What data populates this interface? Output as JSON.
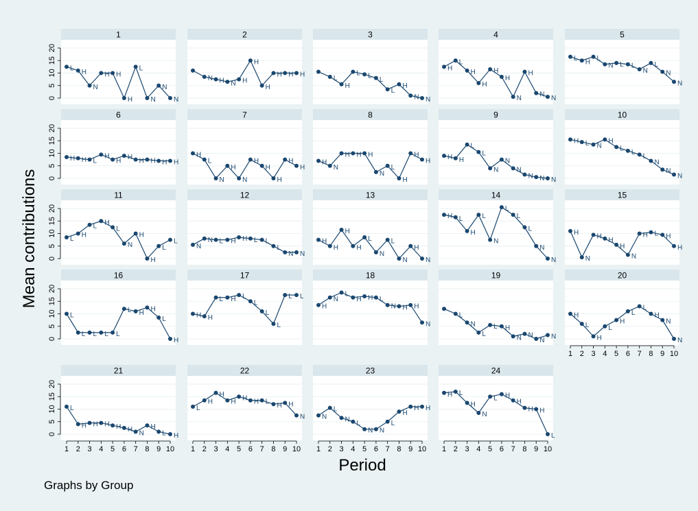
{
  "chart_data": {
    "type": "line",
    "ylabel": "Mean contributions",
    "xlabel": "Period",
    "note": "Graphs by Group",
    "x": [
      1,
      2,
      3,
      4,
      5,
      6,
      7,
      8,
      9,
      10
    ],
    "xlim": [
      1,
      10
    ],
    "ylim": [
      0,
      20
    ],
    "yticks": [
      0,
      5,
      10,
      15,
      20
    ],
    "grid": true,
    "background_color": "#eaf2f3",
    "panel_color": "#ffffff",
    "strip_color": "#d9e6ec",
    "line_color": "#1a476f",
    "groups": [
      {
        "name": "1",
        "values": [
          12.5,
          11,
          5,
          10,
          10,
          0,
          12.5,
          0,
          5,
          0
        ],
        "markers": [
          "L",
          "H",
          "N",
          "H",
          "H",
          "H",
          "L",
          "N",
          "N",
          "N"
        ]
      },
      {
        "name": "2",
        "values": [
          11,
          8.5,
          7.5,
          6.5,
          7.5,
          15,
          5,
          10,
          10,
          10
        ],
        "markers": [
          "",
          "N",
          "H",
          "N",
          "H",
          "H",
          "H",
          "H",
          "H",
          "H"
        ]
      },
      {
        "name": "3",
        "values": [
          10.5,
          8.5,
          5.5,
          10.5,
          9.5,
          8,
          3.5,
          5.5,
          1,
          0
        ],
        "markers": [
          "",
          "L",
          "H",
          "L",
          "L",
          "L",
          "L",
          "H",
          "N",
          "N"
        ]
      },
      {
        "name": "4",
        "values": [
          12.5,
          15,
          11,
          6,
          11.5,
          8.5,
          0.5,
          10.5,
          2,
          0.5
        ],
        "markers": [
          "H",
          "L",
          "H",
          "H",
          "H",
          "H",
          "N",
          "H",
          "N",
          "N"
        ]
      },
      {
        "name": "5",
        "values": [
          16.5,
          15,
          16.5,
          13.5,
          14,
          13.5,
          11.5,
          14,
          10.5,
          6.5
        ],
        "markers": [
          "L",
          "H",
          "L",
          "N",
          "L",
          "L",
          "N",
          "L",
          "N",
          "N"
        ]
      },
      {
        "name": "6",
        "values": [
          8.5,
          8,
          7.5,
          9.5,
          7.5,
          9,
          7.5,
          7.5,
          7,
          7
        ],
        "markers": [
          "H",
          "H",
          "L",
          "H",
          "H",
          "H",
          "H",
          "H",
          "H",
          "H"
        ]
      },
      {
        "name": "7",
        "values": [
          10,
          7.5,
          0,
          5,
          0,
          7.5,
          5,
          0,
          7.5,
          5
        ],
        "markers": [
          "H",
          "L",
          "N",
          "H",
          "N",
          "H",
          "H",
          "H",
          "H",
          "H"
        ]
      },
      {
        "name": "8",
        "values": [
          7,
          5,
          10,
          10,
          10,
          2.5,
          5,
          0,
          10,
          7.5
        ],
        "markers": [
          "H",
          "N",
          "H",
          "H",
          "H",
          "N",
          "L",
          "H",
          "H",
          "H"
        ]
      },
      {
        "name": "9",
        "values": [
          9,
          8,
          13.5,
          10.5,
          4,
          7.5,
          4,
          1.5,
          0.5,
          0
        ],
        "markers": [
          "H",
          "H",
          "L",
          "L",
          "N",
          "N",
          "N",
          "N",
          "N",
          "N"
        ]
      },
      {
        "name": "10",
        "values": [
          15.5,
          14.5,
          13.5,
          15.5,
          12.5,
          11,
          9.5,
          7,
          3.5,
          1.5
        ],
        "markers": [
          "H",
          "L",
          "N",
          "H",
          "L",
          "L",
          "L",
          "N",
          "N",
          "N"
        ]
      },
      {
        "name": "11",
        "values": [
          8.5,
          10,
          13.5,
          15,
          12.5,
          6,
          10,
          0,
          5,
          7.5
        ],
        "markers": [
          "L",
          "H",
          "L",
          "H",
          "L",
          "N",
          "H",
          "H",
          "L",
          "L"
        ]
      },
      {
        "name": "12",
        "values": [
          5.5,
          8,
          7.5,
          7.5,
          8.5,
          8,
          7.5,
          5,
          2.5,
          2.5
        ],
        "markers": [
          "N",
          "N",
          "L",
          "H",
          "H",
          "L",
          "L",
          "L",
          "N",
          "N"
        ]
      },
      {
        "name": "13",
        "values": [
          7.5,
          5,
          11.5,
          5,
          8.5,
          2.5,
          7.5,
          0,
          5,
          0
        ],
        "markers": [
          "H",
          "H",
          "H",
          "H",
          "L",
          "N",
          "L",
          "N",
          "H",
          "N"
        ]
      },
      {
        "name": "14",
        "values": [
          17.5,
          16.5,
          11,
          17.5,
          7.5,
          20.5,
          17.5,
          12.5,
          5,
          0
        ],
        "markers": [
          "H",
          "L",
          "H",
          "L",
          "N",
          "L",
          "L",
          "L",
          "N",
          "N"
        ]
      },
      {
        "name": "15",
        "values": [
          11,
          0.5,
          9.5,
          8,
          5.5,
          1.5,
          10,
          10.5,
          9.5,
          5
        ],
        "markers": [
          "H",
          "N",
          "H",
          "H",
          "H",
          "N",
          "H",
          "L",
          "H",
          "H"
        ]
      },
      {
        "name": "16",
        "values": [
          10,
          2.5,
          2.5,
          2.5,
          2.5,
          12,
          11,
          12.5,
          8.5,
          0
        ],
        "markers": [
          "L",
          "L",
          "L",
          "L",
          "L",
          "L",
          "H",
          "H",
          "L",
          "H"
        ]
      },
      {
        "name": "17",
        "values": [
          10,
          9,
          16.5,
          16.5,
          17.5,
          15,
          11,
          6,
          17.5,
          17.5
        ],
        "markers": [
          "H",
          "H",
          "L",
          "H",
          "L",
          "L",
          "L",
          "L",
          "L",
          "L"
        ]
      },
      {
        "name": "18",
        "values": [
          13.5,
          16.5,
          18.5,
          16.5,
          17,
          16.5,
          13.5,
          13,
          13.5,
          6.5
        ],
        "markers": [
          "H",
          "N",
          "L",
          "H",
          "H",
          "L",
          "N",
          "H",
          "H",
          "N"
        ]
      },
      {
        "name": "19",
        "values": [
          12,
          10,
          6.5,
          2.5,
          5.5,
          5,
          1,
          2,
          0,
          1.5
        ],
        "markers": [
          "",
          "L",
          "N",
          "L",
          "L",
          "H",
          "N",
          "N",
          "N",
          "N"
        ]
      },
      {
        "name": "20",
        "values": [
          10,
          6,
          1,
          5,
          7.5,
          11,
          13,
          10,
          7.5,
          0
        ],
        "markers": [
          "H",
          "L",
          "H",
          "L",
          "H",
          "L",
          "L",
          "H",
          "N",
          "N"
        ]
      },
      {
        "name": "21",
        "values": [
          11,
          4,
          4.5,
          4.5,
          3.5,
          2.5,
          1,
          3.5,
          1,
          0
        ],
        "markers": [
          "L",
          "H",
          "H",
          "H",
          "H",
          "H",
          "N",
          "H",
          "L",
          "H"
        ]
      },
      {
        "name": "22",
        "values": [
          11,
          13.5,
          16.5,
          13.5,
          15,
          13.5,
          13.5,
          12,
          12.5,
          7.5
        ],
        "markers": [
          "L",
          "H",
          "H",
          "H",
          "H",
          "H",
          "L",
          "H",
          "H",
          "N"
        ]
      },
      {
        "name": "23",
        "values": [
          7.5,
          10.5,
          6.5,
          5,
          2,
          2,
          5,
          9,
          11,
          11
        ],
        "markers": [
          "N",
          "L",
          "N",
          "L",
          "N",
          "N",
          "L",
          "H",
          "H",
          "H"
        ]
      },
      {
        "name": "24",
        "values": [
          16.5,
          17,
          12.5,
          8.5,
          15,
          16,
          13.5,
          10.5,
          10,
          0
        ],
        "markers": [
          "H",
          "L",
          "H",
          "N",
          "L",
          "H",
          "H",
          "H",
          "H",
          "L"
        ]
      }
    ]
  }
}
